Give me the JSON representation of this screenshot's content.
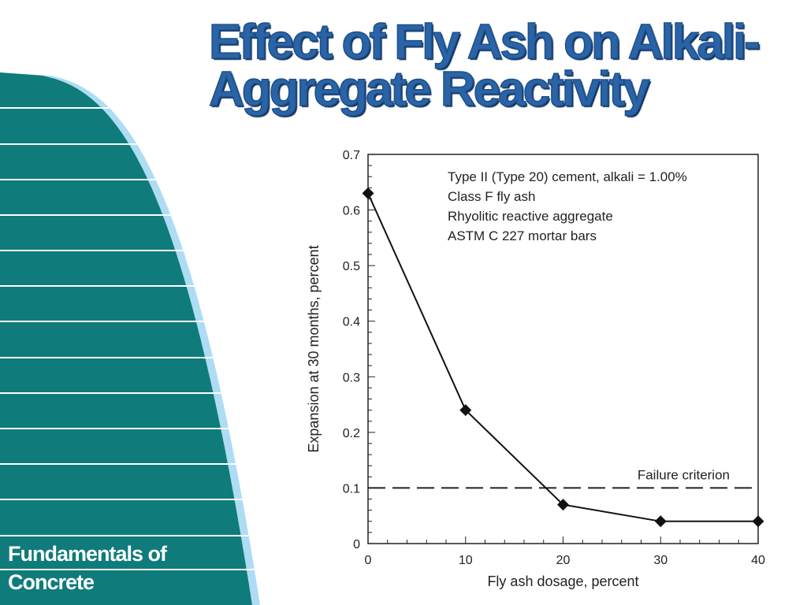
{
  "slide": {
    "title_lines": [
      "Effect of Fly Ash on Alkali-",
      "Aggregate Reactivity"
    ],
    "footer_lines": [
      "Fundamentals of",
      "Concrete"
    ],
    "colors": {
      "title": "#2a64a6",
      "band": "#0f7b7a",
      "band_accent": "#aedcf4",
      "footer_text": "#ffffff"
    }
  },
  "chart_data": {
    "type": "line",
    "xlabel": "Fly ash dosage, percent",
    "ylabel": "Expansion at 30 months, percent",
    "xlim": [
      0,
      40
    ],
    "ylim": [
      0,
      0.7
    ],
    "x_ticks": [
      "0",
      "10",
      "20",
      "30",
      "40"
    ],
    "y_ticks": [
      "0",
      "0.1",
      "0.2",
      "0.3",
      "0.4",
      "0.5",
      "0.6",
      "0.7"
    ],
    "series": [
      {
        "marker": "diamond",
        "x": [
          0,
          10,
          20,
          30,
          40
        ],
        "values": [
          0.63,
          0.24,
          0.07,
          0.04,
          0.04
        ]
      }
    ],
    "reference_line": {
      "y": 0.1,
      "style": "dashed",
      "label": "Failure criterion"
    },
    "annotation_lines": [
      "Type II (Type 20) cement, alkali = 1.00%",
      "Class F fly ash",
      "Rhyolitic reactive aggregate",
      "ASTM C 227 mortar bars"
    ],
    "grid": false,
    "minor_ticks": true
  }
}
